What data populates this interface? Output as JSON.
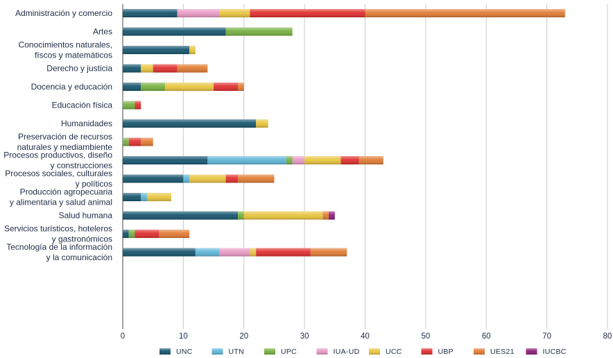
{
  "chart_data": {
    "type": "bar",
    "orientation": "horizontal",
    "stacked": true,
    "title": "",
    "xlabel": "",
    "ylabel": "",
    "xlim": [
      0,
      80
    ],
    "x_ticks": [
      0,
      10,
      20,
      30,
      40,
      50,
      60,
      70,
      80
    ],
    "grid": true,
    "legend_position": "bottom",
    "categories": [
      [
        "Administración y comercio"
      ],
      [
        "Artes"
      ],
      [
        "Conocimientos naturales,",
        "físcos y matemáticos"
      ],
      [
        "Derecho y justicia"
      ],
      [
        "Docencia y educación"
      ],
      [
        "Educación física"
      ],
      [
        "Humanidades"
      ],
      [
        "Preservación de recursos",
        "naturales y mediambiente"
      ],
      [
        "Procesos productivos, diseño",
        "y construcciones"
      ],
      [
        "Procesos sociales, culturales",
        "y políticos"
      ],
      [
        "Producción agropecuaria",
        "y alimentaria y salud animal"
      ],
      [
        "Salud humana"
      ],
      [
        "Servicios turísticos, hoteleros",
        "y gastronómicos"
      ],
      [
        "Tecnología de la información",
        "y la comunicación"
      ]
    ],
    "series": [
      {
        "name": "UNC",
        "color": "#17556e",
        "values": [
          9,
          17,
          11,
          3,
          3,
          0,
          22,
          0,
          14,
          10,
          3,
          19,
          1,
          12
        ]
      },
      {
        "name": "UTN",
        "color": "#5fb6d8",
        "values": [
          0,
          0,
          0,
          0,
          0,
          0,
          0,
          0,
          13,
          1,
          1,
          0,
          0,
          4
        ]
      },
      {
        "name": "UPC",
        "color": "#76b041",
        "values": [
          0,
          11,
          0,
          0,
          4,
          2,
          0,
          1,
          1,
          0,
          0,
          1,
          1,
          0
        ]
      },
      {
        "name": "IUA-UD",
        "color": "#e89ac4",
        "values": [
          7,
          0,
          0,
          0,
          0,
          0,
          0,
          0,
          2,
          0,
          0,
          0,
          0,
          5
        ]
      },
      {
        "name": "UCC",
        "color": "#e9c53f",
        "values": [
          5,
          0,
          1,
          2,
          8,
          0,
          2,
          0,
          6,
          6,
          4,
          13,
          0,
          1
        ]
      },
      {
        "name": "UBP",
        "color": "#df2f2e",
        "values": [
          19,
          0,
          0,
          4,
          4,
          1,
          0,
          2,
          3,
          2,
          0,
          0,
          4,
          9
        ]
      },
      {
        "name": "UES21",
        "color": "#e17b33",
        "values": [
          33,
          0,
          0,
          5,
          1,
          0,
          0,
          2,
          4,
          6,
          0,
          1,
          5,
          6
        ]
      },
      {
        "name": "IUCBC",
        "color": "#8c1d7c",
        "values": [
          0,
          0,
          0,
          0,
          0,
          0,
          0,
          0,
          0,
          0,
          0,
          1,
          0,
          0
        ]
      }
    ]
  }
}
